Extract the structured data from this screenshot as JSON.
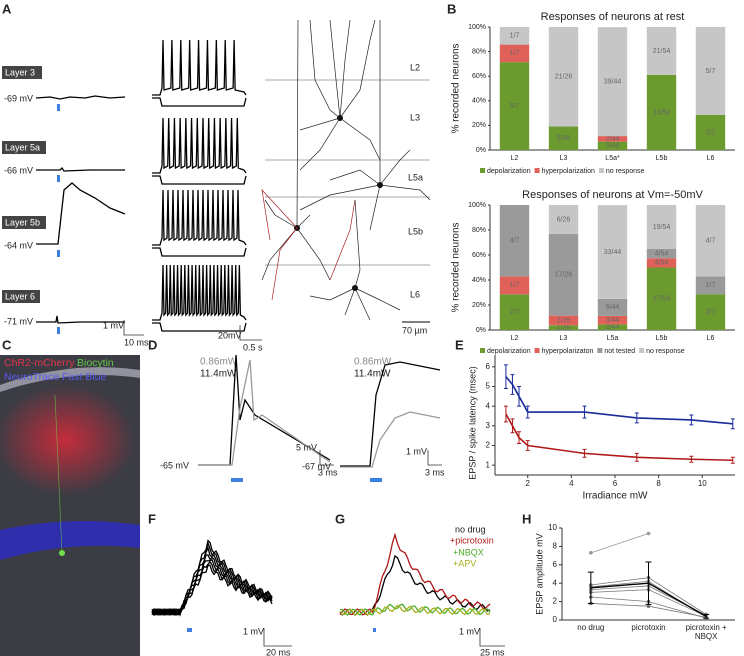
{
  "panel_labels": [
    "A",
    "B",
    "C",
    "D",
    "E",
    "F",
    "G",
    "H"
  ],
  "panel_a": {
    "layers": [
      {
        "name": "Layer 3",
        "vm": "-69 mV"
      },
      {
        "name": "Layer 5a",
        "vm": "-66 mV"
      },
      {
        "name": "Layer 5b",
        "vm": "-64 mV"
      },
      {
        "name": "Layer 6",
        "vm": "-71 mV"
      }
    ],
    "scale_epsp": [
      "1 mV",
      "10 ms"
    ],
    "scale_spikes": [
      "20mV",
      "0.5 s"
    ],
    "cortical_layers": [
      "L2",
      "L3",
      "L5a",
      "L5b",
      "L6"
    ],
    "scale_morph": "70 µm"
  },
  "panel_c": {
    "labels": [
      "ChR2-mCherry",
      "Biocytin",
      "NeuroTrace Fast Blue"
    ]
  },
  "panel_d": {
    "powers": [
      "0.86mW",
      "11.4mW"
    ],
    "left": {
      "vm": "-65 mV",
      "scale": [
        "5 mV",
        "3 ms"
      ]
    },
    "right": {
      "vm": "-67 mV",
      "scale": [
        "1 mV",
        "3 ms"
      ]
    }
  },
  "panel_f": {
    "scale": [
      "1 mV",
      "20 ms"
    ]
  },
  "panel_g": {
    "legend": [
      "no drug",
      "+picrotoxin",
      "+NBQX",
      "+APV"
    ],
    "scale": [
      "1 mV",
      "25 ms"
    ]
  },
  "chart_data": [
    {
      "type": "stacked_bar",
      "title": "Responses of neurons at rest",
      "ylabel": "% recorded neurons",
      "categories": [
        "L2",
        "L3",
        "L5a*",
        "L5b",
        "L6"
      ],
      "ylim": [
        0,
        100
      ],
      "yticks": [
        {
          "value": 0,
          "label": "0%"
        },
        {
          "value": 20,
          "label": "20%"
        },
        {
          "value": 40,
          "label": "40%"
        },
        {
          "value": 60,
          "label": "60%"
        },
        {
          "value": 80,
          "label": "80%"
        },
        {
          "value": 100,
          "label": "100%"
        }
      ],
      "series": [
        {
          "name": "depolarization",
          "color": "#6b9a2e",
          "values": [
            71.4,
            19.2,
            6.8,
            61.1,
            28.6
          ],
          "value_labels": [
            "5/7",
            "5/26",
            "3/44",
            "33/54",
            "2/7"
          ]
        },
        {
          "name": "hyperpolarization",
          "color": "#e0615a",
          "values": [
            14.3,
            0,
            4.5,
            0,
            0
          ],
          "value_labels": [
            "1/7",
            null,
            "2/44",
            null,
            null
          ]
        },
        {
          "name": "no response",
          "color": "#c6c6c6",
          "values": [
            14.3,
            80.8,
            88.6,
            38.9,
            71.4
          ],
          "value_labels": [
            "1/7",
            "21/26",
            "39/44",
            "21/54",
            "5/7"
          ]
        }
      ]
    },
    {
      "type": "stacked_bar",
      "title": "Responses of neurons at Vm=-50mV",
      "ylabel": "% recorded neurons",
      "categories": [
        "L2",
        "L3",
        "L5a",
        "L5b",
        "L6"
      ],
      "ylim": [
        0,
        100
      ],
      "yticks": [
        {
          "value": 0,
          "label": "0%"
        },
        {
          "value": 20,
          "label": "20%"
        },
        {
          "value": 40,
          "label": "40%"
        },
        {
          "value": 60,
          "label": "60%"
        },
        {
          "value": 80,
          "label": "80%"
        },
        {
          "value": 100,
          "label": "100%"
        }
      ],
      "series": [
        {
          "name": "depolarization",
          "color": "#6b9a2e",
          "values": [
            28.6,
            3.8,
            4.5,
            50.0,
            28.6
          ],
          "value_labels": [
            "2/7",
            "1/26",
            "2/44",
            "27/54",
            "2/7"
          ]
        },
        {
          "name": "hyperpolarizaton",
          "color": "#e0615a",
          "values": [
            14.3,
            7.7,
            6.8,
            7.4,
            0
          ],
          "value_labels": [
            "1/7",
            "2/26",
            "3/44",
            "4/54",
            null
          ]
        },
        {
          "name": "not tested",
          "color": "#9a9a9a",
          "values": [
            57.1,
            65.4,
            13.6,
            7.4,
            14.3
          ],
          "value_labels": [
            "4/7",
            "17/26",
            "6/44",
            "4/54",
            "1/7"
          ]
        },
        {
          "name": "no response",
          "color": "#c6c6c6",
          "values": [
            0,
            23.1,
            75.0,
            35.2,
            57.1
          ],
          "value_labels": [
            null,
            "6/26",
            "33/44",
            "19/54",
            "4/7"
          ]
        }
      ]
    },
    {
      "type": "line",
      "xlabel": "Irradiance mW",
      "ylabel": "EPSP / spike latency (msec)",
      "x": [
        1,
        1.3,
        1.6,
        2,
        4.6,
        7,
        9.5,
        11.4
      ],
      "xlim": [
        0.5,
        11.5
      ],
      "ylim": [
        0.5,
        6.6
      ],
      "xticks": [
        2,
        4,
        6,
        8,
        10
      ],
      "yticks": [
        1,
        2,
        3,
        4,
        5,
        6
      ],
      "series": [
        {
          "color": "#1a2a9a",
          "values": [
            5.5,
            5.1,
            4.5,
            3.7,
            3.7,
            3.4,
            3.3,
            3.1
          ],
          "errors": [
            0.6,
            0.5,
            0.5,
            0.3,
            0.3,
            0.25,
            0.25,
            0.25
          ]
        },
        {
          "color": "#b01818",
          "values": [
            3.6,
            3.0,
            2.4,
            2.0,
            1.6,
            1.4,
            1.3,
            1.25
          ],
          "errors": [
            0.4,
            0.35,
            0.3,
            0.25,
            0.2,
            0.2,
            0.15,
            0.15
          ]
        }
      ]
    },
    {
      "type": "paired",
      "ylabel": "EPSP amplitude mV",
      "categories": [
        "no drug",
        "picrotoxin",
        "picrotoxin + NBQX"
      ],
      "ylim": [
        0,
        10
      ],
      "yticks": [
        0,
        2,
        4,
        6,
        8,
        10
      ],
      "series": [
        {
          "color": "#999999",
          "values": [
            7.3,
            9.4,
            null
          ]
        },
        {
          "color": "#777777",
          "values": [
            3.8,
            4.6,
            0.6
          ]
        },
        {
          "color": "#777777",
          "values": [
            3.6,
            4.2,
            0.3
          ]
        },
        {
          "color": "#777777",
          "values": [
            3.3,
            3.7,
            0.5
          ]
        },
        {
          "color": "#777777",
          "values": [
            3.0,
            3.3,
            0.4
          ]
        },
        {
          "color": "#777777",
          "values": [
            2.5,
            2.0,
            0.2
          ]
        },
        {
          "color": "#777777",
          "values": [
            1.8,
            1.5,
            0.3
          ]
        },
        {
          "color": "#000000",
          "values": [
            3.5,
            4.0,
            0.4
          ],
          "errors": [
            1.7,
            2.3,
            0.2
          ]
        }
      ]
    }
  ]
}
